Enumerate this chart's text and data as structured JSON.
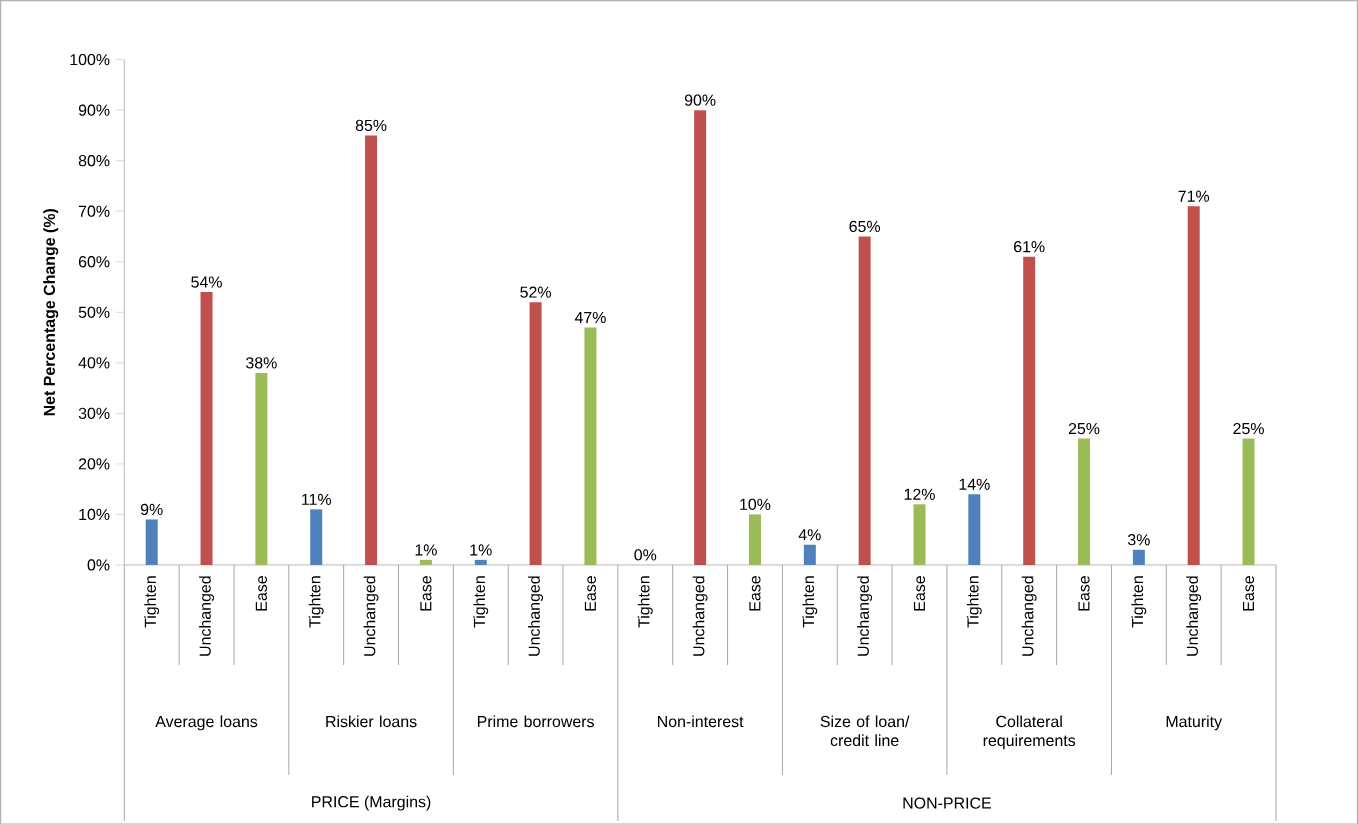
{
  "chart_data": {
    "type": "bar",
    "ylabel": "Net  Percentage  Change (%)",
    "categories": [
      "Tighten",
      "Unchanged",
      "Ease",
      "Tighten",
      "Unchanged",
      "Ease",
      "Tighten",
      "Unchanged",
      "Ease",
      "Tighten",
      "Unchanged",
      "Ease",
      "Tighten",
      "Unchanged",
      "Ease",
      "Tighten",
      "Unchanged",
      "Ease",
      "Tighten",
      "Unchanged",
      "Ease"
    ],
    "values": [
      9,
      54,
      38,
      11,
      85,
      1,
      1,
      52,
      47,
      0,
      90,
      10,
      4,
      65,
      12,
      14,
      61,
      25,
      3,
      71,
      25
    ],
    "colors": [
      "#4f81bd",
      "#c0504d",
      "#9bbb59",
      "#4f81bd",
      "#c0504d",
      "#9bbb59",
      "#4f81bd",
      "#c0504d",
      "#9bbb59",
      "#4f81bd",
      "#c0504d",
      "#9bbb59",
      "#4f81bd",
      "#c0504d",
      "#9bbb59",
      "#4f81bd",
      "#c0504d",
      "#9bbb59",
      "#4f81bd",
      "#c0504d",
      "#9bbb59"
    ],
    "value_labels": [
      "9%",
      "54%",
      "38%",
      "11%",
      "85%",
      "1%",
      "1%",
      "52%",
      "47%",
      "0%",
      "90%",
      "10%",
      "4%",
      "65%",
      "12%",
      "14%",
      "61%",
      "25%",
      "3%",
      "71%",
      "25%"
    ],
    "ylim": [
      0,
      100
    ],
    "yticks": [
      {
        "value": 0,
        "label": "0%"
      },
      {
        "value": 10,
        "label": "10%"
      },
      {
        "value": 20,
        "label": "20%"
      },
      {
        "value": 30,
        "label": "30%"
      },
      {
        "value": 40,
        "label": "40%"
      },
      {
        "value": 50,
        "label": "50%"
      },
      {
        "value": 60,
        "label": "60%"
      },
      {
        "value": 70,
        "label": "70%"
      },
      {
        "value": 80,
        "label": "80%"
      },
      {
        "value": 90,
        "label": "90%"
      },
      {
        "value": 100,
        "label": "100%"
      }
    ],
    "annotations": [
      "Average loans",
      "Riskier loans",
      "Prime borrowers",
      "Non-interest",
      "Size  of loan/ credit line",
      "Collateral requirements",
      "Maturity",
      "PRICE (Margins)",
      "NON-PRICE"
    ],
    "grid": false
  }
}
